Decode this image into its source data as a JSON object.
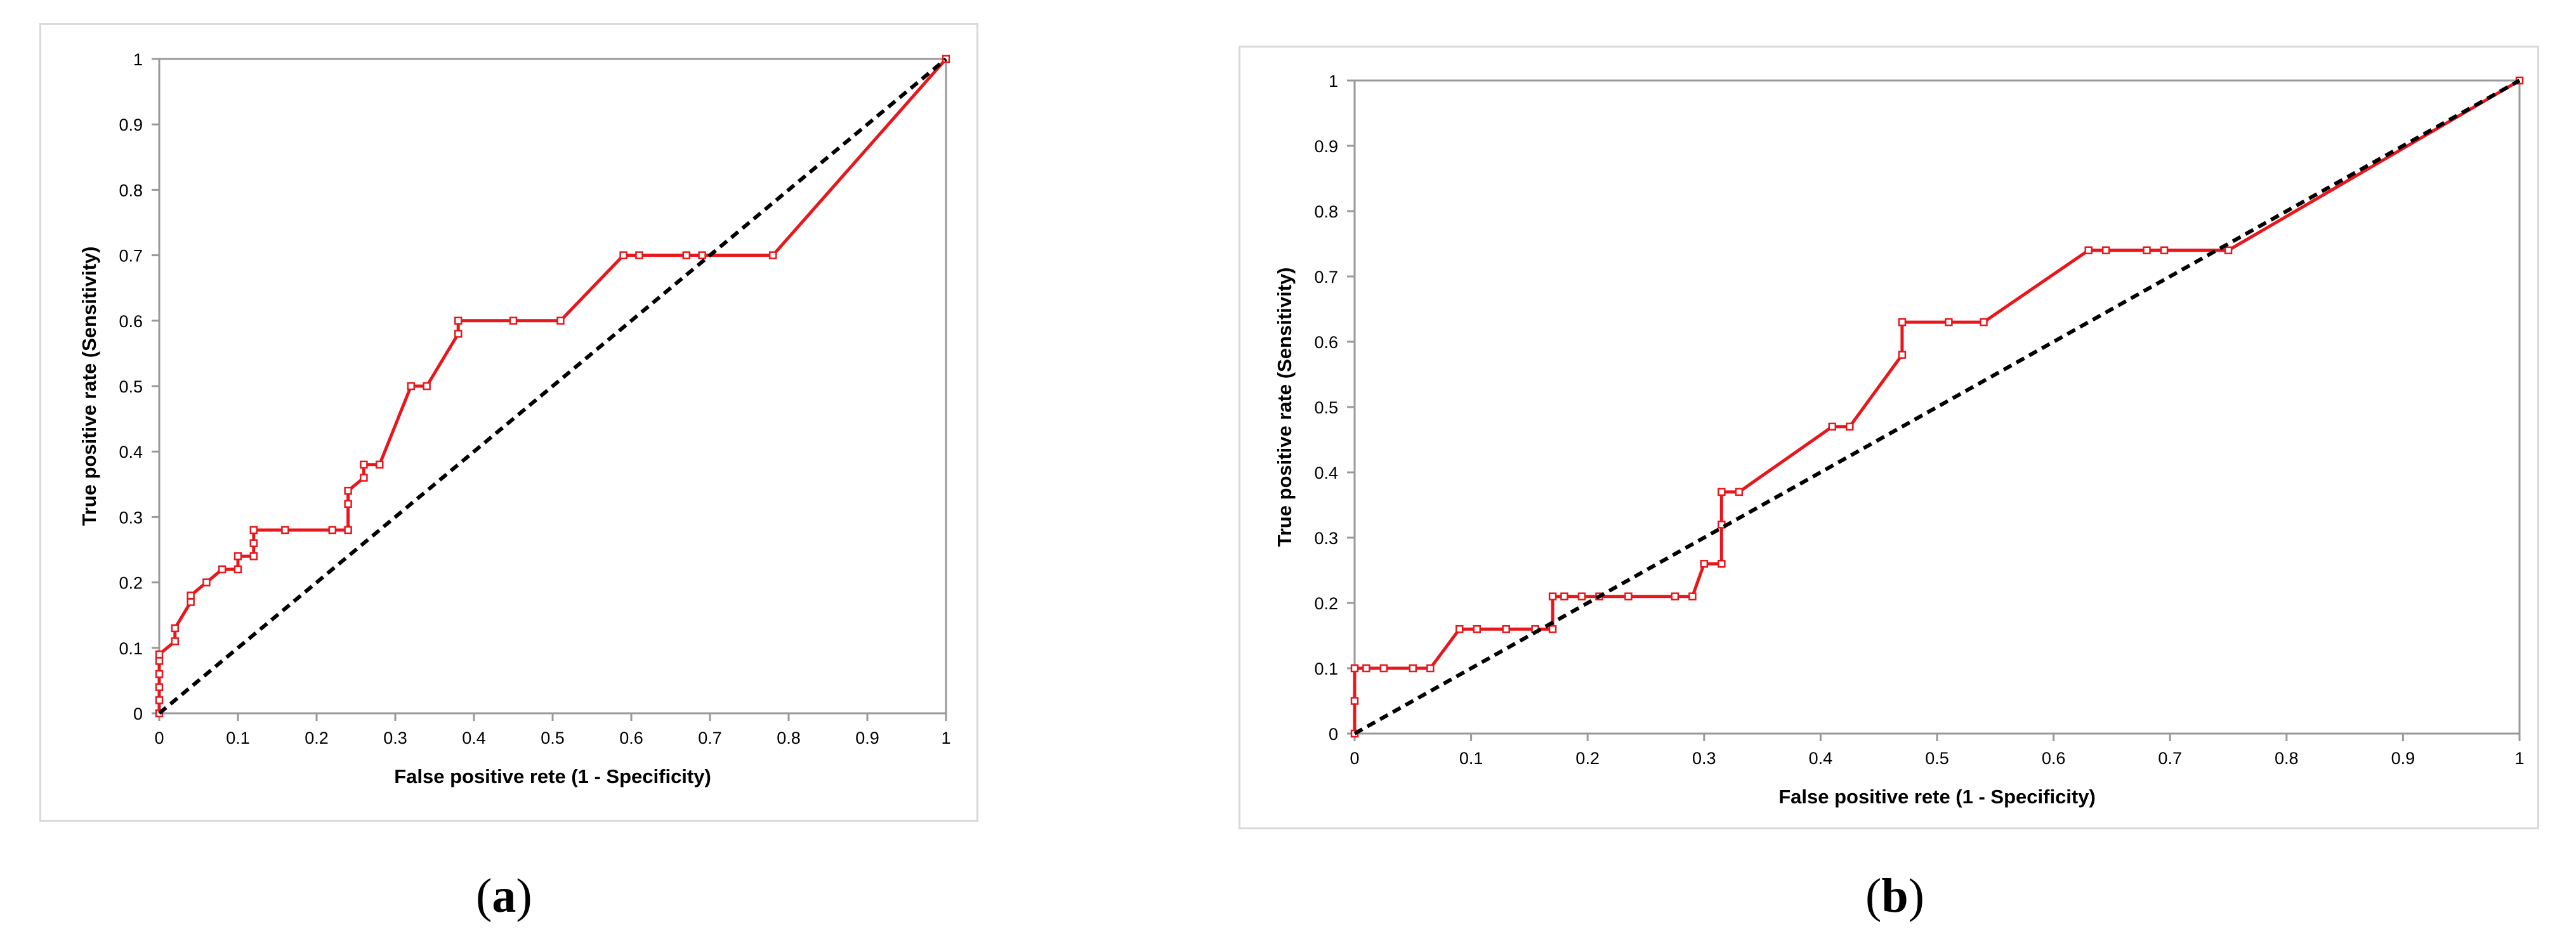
{
  "captions": [
    {
      "open": "(",
      "letter": "a",
      "close": ")"
    },
    {
      "open": "(",
      "letter": "b",
      "close": ")"
    }
  ],
  "colors": {
    "roc": "#e8171c",
    "reference": "#000000",
    "axis": "#999999"
  },
  "chart_data": [
    {
      "type": "line",
      "panel": "a",
      "xlabel": "False positive rete (1 - Specificity)",
      "ylabel": "True positive rate (Sensitivity)",
      "xlim": [
        0,
        1
      ],
      "ylim": [
        0,
        1
      ],
      "xticks": [
        "0",
        "0.1",
        "0.2",
        "0.3",
        "0.4",
        "0.5",
        "0.6",
        "0.7",
        "0.8",
        "0.9",
        "1"
      ],
      "yticks": [
        "0",
        "0.1",
        "0.2",
        "0.3",
        "0.4",
        "0.5",
        "0.6",
        "0.7",
        "0.8",
        "0.9",
        "1"
      ],
      "grid": false,
      "legend": "none",
      "series": [
        {
          "style": "solid-markers",
          "x": [
            0,
            0,
            0,
            0,
            0,
            0,
            0.02,
            0.02,
            0.04,
            0.04,
            0.06,
            0.08,
            0.1,
            0.1,
            0.12,
            0.12,
            0.12,
            0.16,
            0.22,
            0.24,
            0.24,
            0.24,
            0.26,
            0.26,
            0.28,
            0.32,
            0.34,
            0.38,
            0.38,
            0.45,
            0.51,
            0.59,
            0.61,
            0.67,
            0.69,
            0.78,
            1
          ],
          "y": [
            0,
            0.02,
            0.04,
            0.06,
            0.08,
            0.09,
            0.11,
            0.13,
            0.17,
            0.18,
            0.2,
            0.22,
            0.22,
            0.24,
            0.24,
            0.26,
            0.28,
            0.28,
            0.28,
            0.28,
            0.32,
            0.34,
            0.36,
            0.38,
            0.38,
            0.5,
            0.5,
            0.58,
            0.6,
            0.6,
            0.6,
            0.7,
            0.7,
            0.7,
            0.7,
            0.7,
            1
          ]
        },
        {
          "style": "dashed",
          "x": [
            0,
            1
          ],
          "y": [
            0,
            1
          ]
        }
      ]
    },
    {
      "type": "line",
      "panel": "b",
      "xlabel": "False positive rete (1 - Specificity)",
      "ylabel": "True positive rate (Sensitivity)",
      "xlim": [
        0,
        1
      ],
      "ylim": [
        0,
        1
      ],
      "xticks": [
        "0",
        "0.1",
        "0.2",
        "0.3",
        "0.4",
        "0.5",
        "0.6",
        "0.7",
        "0.8",
        "0.9",
        "1"
      ],
      "yticks": [
        "0",
        "0.1",
        "0.2",
        "0.3",
        "0.4",
        "0.5",
        "0.6",
        "0.7",
        "0.8",
        "0.9",
        "1"
      ],
      "grid": false,
      "legend": "none",
      "series": [
        {
          "style": "solid-markers",
          "x": [
            0,
            0,
            0,
            0.01,
            0.025,
            0.05,
            0.065,
            0.09,
            0.105,
            0.13,
            0.155,
            0.17,
            0.17,
            0.18,
            0.195,
            0.21,
            0.235,
            0.275,
            0.29,
            0.3,
            0.315,
            0.315,
            0.315,
            0.33,
            0.41,
            0.425,
            0.47,
            0.47,
            0.51,
            0.54,
            0.63,
            0.645,
            0.68,
            0.695,
            0.75,
            1
          ],
          "y": [
            0,
            0.05,
            0.1,
            0.1,
            0.1,
            0.1,
            0.1,
            0.16,
            0.16,
            0.16,
            0.16,
            0.16,
            0.21,
            0.21,
            0.21,
            0.21,
            0.21,
            0.21,
            0.21,
            0.26,
            0.26,
            0.32,
            0.37,
            0.37,
            0.47,
            0.47,
            0.58,
            0.63,
            0.63,
            0.63,
            0.74,
            0.74,
            0.74,
            0.74,
            0.74,
            1
          ]
        },
        {
          "style": "dashed",
          "x": [
            0,
            1
          ],
          "y": [
            0,
            1
          ]
        }
      ]
    }
  ]
}
